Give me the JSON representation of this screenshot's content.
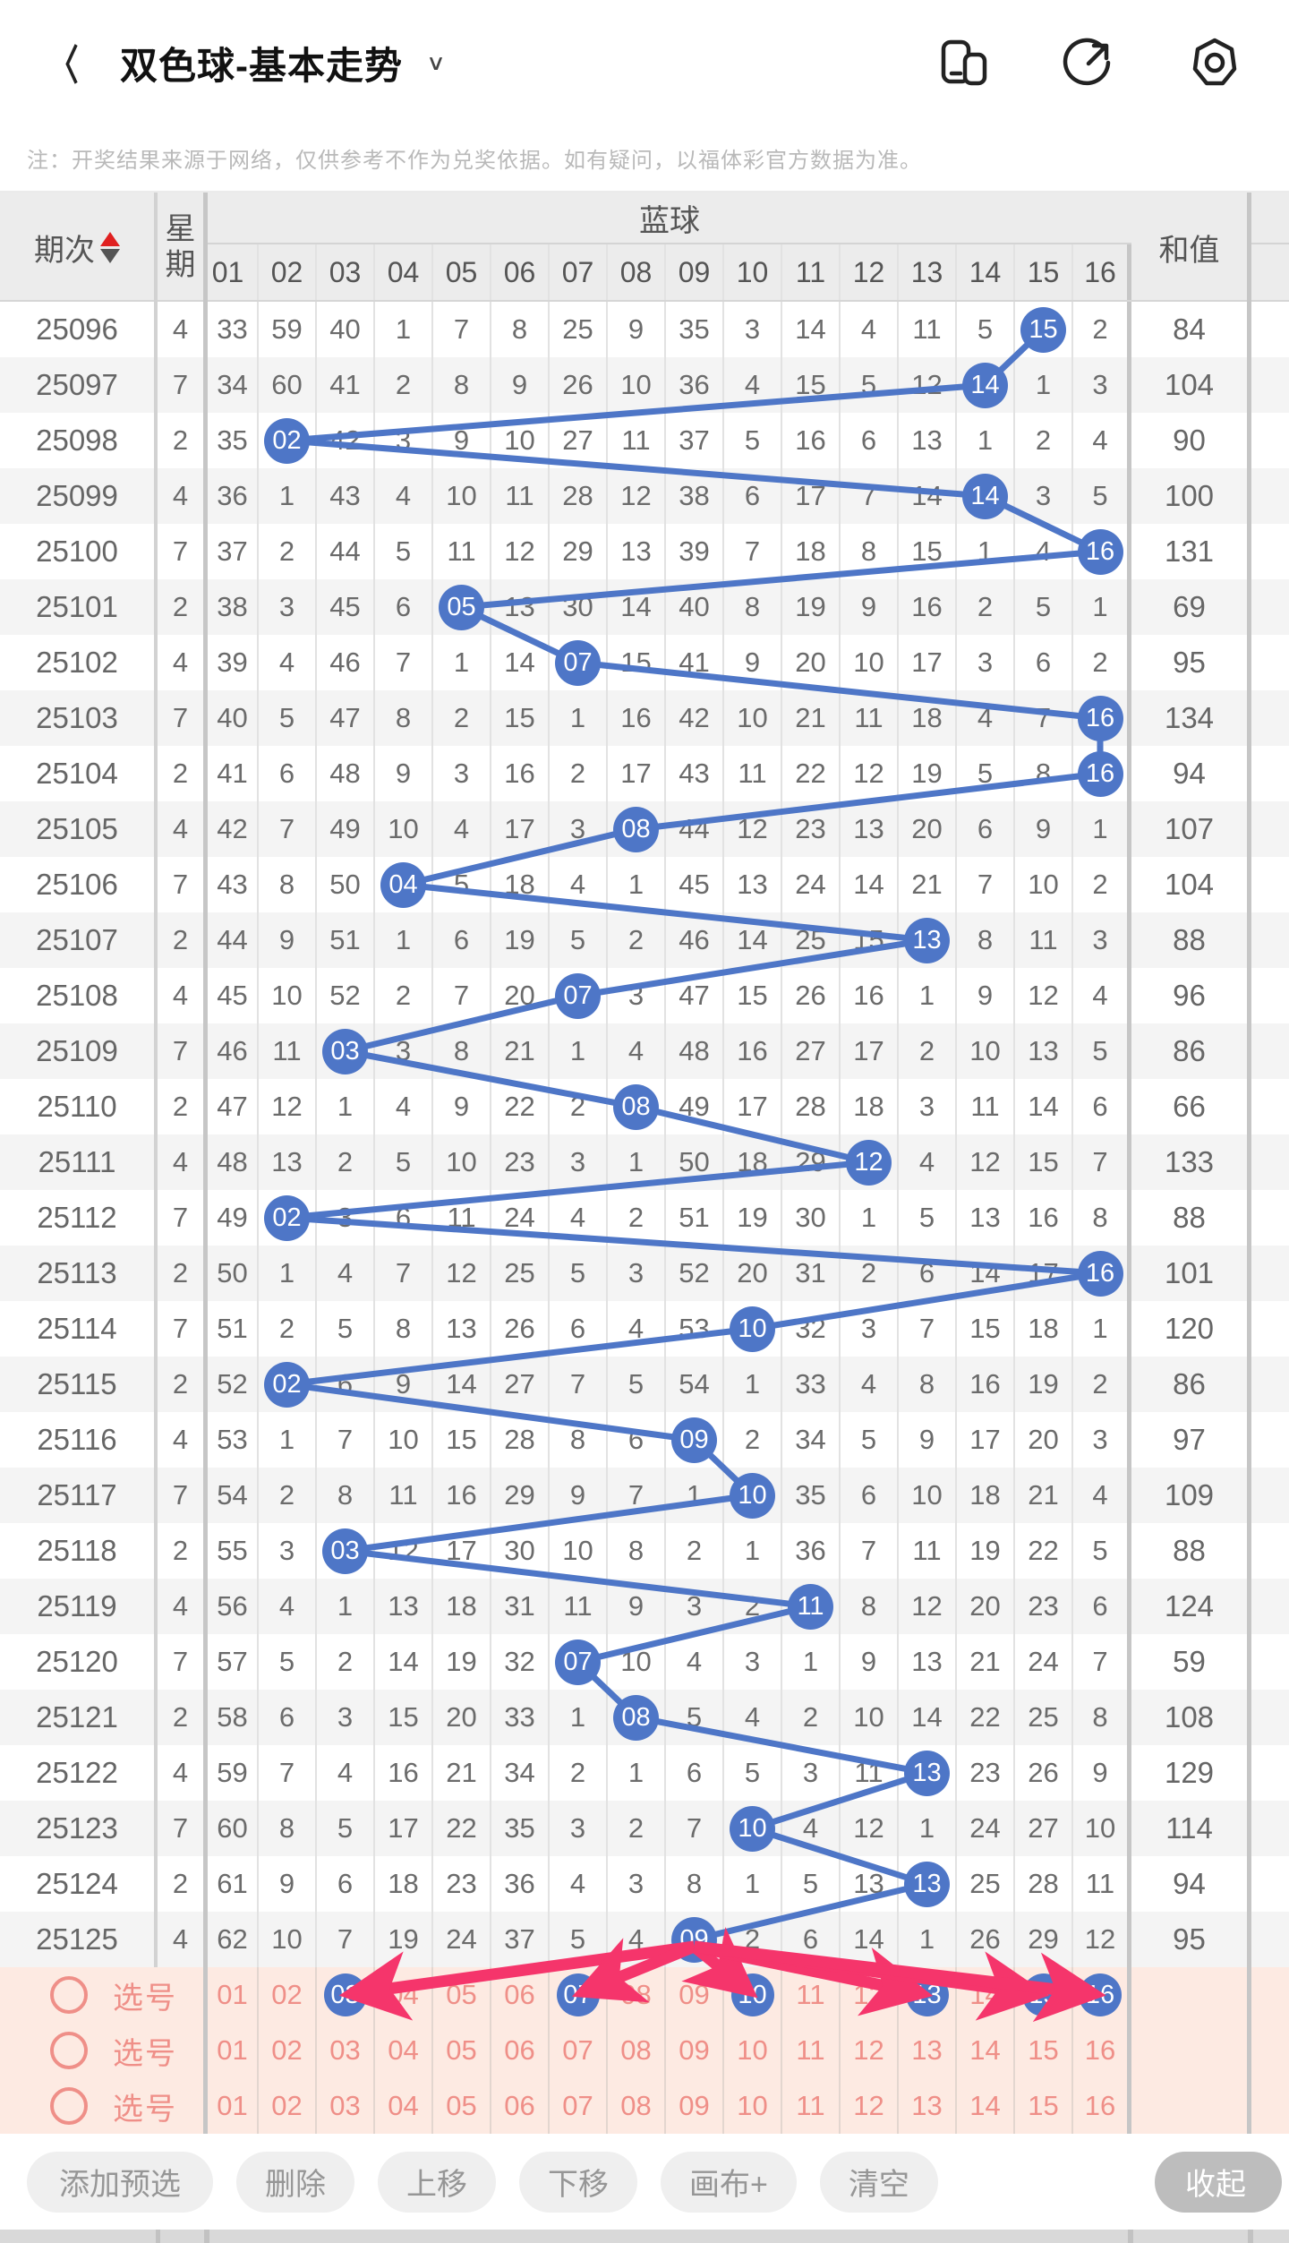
{
  "appbar": {
    "back_glyph": "〈",
    "title": "双色球-基本走势",
    "dropdown_glyph": "∨",
    "icons": [
      "split-screen-icon",
      "share-icon",
      "settings-icon"
    ]
  },
  "notice": "注：开奖结果来源于网络，仅供参考不作为兑奖依据。如有疑问，以福体彩官方数据为准。",
  "table": {
    "period_header": "期次",
    "weekday_header_chars": [
      "星",
      "期"
    ],
    "group_header": "蓝球",
    "sum_header": "和值",
    "ball_numbers": [
      "01",
      "02",
      "03",
      "04",
      "05",
      "06",
      "07",
      "08",
      "09",
      "10",
      "11",
      "12",
      "13",
      "14",
      "15",
      "16"
    ],
    "rows": [
      {
        "period": "25096",
        "weekday": "4",
        "cells": [
          33,
          59,
          40,
          1,
          7,
          8,
          25,
          9,
          35,
          3,
          14,
          4,
          11,
          5,
          15,
          2
        ],
        "ball": 15,
        "sum": "84"
      },
      {
        "period": "25097",
        "weekday": "7",
        "cells": [
          34,
          60,
          41,
          2,
          8,
          9,
          26,
          10,
          36,
          4,
          15,
          5,
          12,
          14,
          1,
          3
        ],
        "ball": 14,
        "sum": "104"
      },
      {
        "period": "25098",
        "weekday": "2",
        "cells": [
          35,
          2,
          42,
          3,
          9,
          10,
          27,
          11,
          37,
          5,
          16,
          6,
          13,
          1,
          2,
          4
        ],
        "ball": 2,
        "sum": "90"
      },
      {
        "period": "25099",
        "weekday": "4",
        "cells": [
          36,
          1,
          43,
          4,
          10,
          11,
          28,
          12,
          38,
          6,
          17,
          7,
          14,
          14,
          3,
          5
        ],
        "ball": 14,
        "sum": "100"
      },
      {
        "period": "25100",
        "weekday": "7",
        "cells": [
          37,
          2,
          44,
          5,
          11,
          12,
          29,
          13,
          39,
          7,
          18,
          8,
          15,
          1,
          4,
          16
        ],
        "ball": 16,
        "sum": "131"
      },
      {
        "period": "25101",
        "weekday": "2",
        "cells": [
          38,
          3,
          45,
          6,
          5,
          13,
          30,
          14,
          40,
          8,
          19,
          9,
          16,
          2,
          5,
          1
        ],
        "ball": 5,
        "sum": "69"
      },
      {
        "period": "25102",
        "weekday": "4",
        "cells": [
          39,
          4,
          46,
          7,
          1,
          14,
          7,
          15,
          41,
          9,
          20,
          10,
          17,
          3,
          6,
          2
        ],
        "ball": 7,
        "sum": "95"
      },
      {
        "period": "25103",
        "weekday": "7",
        "cells": [
          40,
          5,
          47,
          8,
          2,
          15,
          1,
          16,
          42,
          10,
          21,
          11,
          18,
          4,
          7,
          16
        ],
        "ball": 16,
        "sum": "134"
      },
      {
        "period": "25104",
        "weekday": "2",
        "cells": [
          41,
          6,
          48,
          9,
          3,
          16,
          2,
          17,
          43,
          11,
          22,
          12,
          19,
          5,
          8,
          16
        ],
        "ball": 16,
        "sum": "94"
      },
      {
        "period": "25105",
        "weekday": "4",
        "cells": [
          42,
          7,
          49,
          10,
          4,
          17,
          3,
          8,
          44,
          12,
          23,
          13,
          20,
          6,
          9,
          1
        ],
        "ball": 8,
        "sum": "107"
      },
      {
        "period": "25106",
        "weekday": "7",
        "cells": [
          43,
          8,
          50,
          4,
          5,
          18,
          4,
          1,
          45,
          13,
          24,
          14,
          21,
          7,
          10,
          2
        ],
        "ball": 4,
        "sum": "104"
      },
      {
        "period": "25107",
        "weekday": "2",
        "cells": [
          44,
          9,
          51,
          1,
          6,
          19,
          5,
          2,
          46,
          14,
          25,
          15,
          13,
          8,
          11,
          3
        ],
        "ball": 13,
        "sum": "88"
      },
      {
        "period": "25108",
        "weekday": "4",
        "cells": [
          45,
          10,
          52,
          2,
          7,
          20,
          7,
          3,
          47,
          15,
          26,
          16,
          1,
          9,
          12,
          4
        ],
        "ball": 7,
        "sum": "96"
      },
      {
        "period": "25109",
        "weekday": "7",
        "cells": [
          46,
          11,
          3,
          3,
          8,
          21,
          1,
          4,
          48,
          16,
          27,
          17,
          2,
          10,
          13,
          5
        ],
        "ball": 3,
        "sum": "86"
      },
      {
        "period": "25110",
        "weekday": "2",
        "cells": [
          47,
          12,
          1,
          4,
          9,
          22,
          2,
          8,
          49,
          17,
          28,
          18,
          3,
          11,
          14,
          6
        ],
        "ball": 8,
        "sum": "66"
      },
      {
        "period": "25111",
        "weekday": "4",
        "cells": [
          48,
          13,
          2,
          5,
          10,
          23,
          3,
          1,
          50,
          18,
          29,
          12,
          4,
          12,
          15,
          7
        ],
        "ball": 12,
        "sum": "133"
      },
      {
        "period": "25112",
        "weekday": "7",
        "cells": [
          49,
          2,
          3,
          6,
          11,
          24,
          4,
          2,
          51,
          19,
          30,
          1,
          5,
          13,
          16,
          8
        ],
        "ball": 2,
        "sum": "88"
      },
      {
        "period": "25113",
        "weekday": "2",
        "cells": [
          50,
          1,
          4,
          7,
          12,
          25,
          5,
          3,
          52,
          20,
          31,
          2,
          6,
          14,
          17,
          16
        ],
        "ball": 16,
        "sum": "101"
      },
      {
        "period": "25114",
        "weekday": "7",
        "cells": [
          51,
          2,
          5,
          8,
          13,
          26,
          6,
          4,
          53,
          10,
          32,
          3,
          7,
          15,
          18,
          1
        ],
        "ball": 10,
        "sum": "120"
      },
      {
        "period": "25115",
        "weekday": "2",
        "cells": [
          52,
          2,
          6,
          9,
          14,
          27,
          7,
          5,
          54,
          1,
          33,
          4,
          8,
          16,
          19,
          2
        ],
        "ball": 2,
        "sum": "86"
      },
      {
        "period": "25116",
        "weekday": "4",
        "cells": [
          53,
          1,
          7,
          10,
          15,
          28,
          8,
          6,
          9,
          2,
          34,
          5,
          9,
          17,
          20,
          3
        ],
        "ball": 9,
        "sum": "97"
      },
      {
        "period": "25117",
        "weekday": "7",
        "cells": [
          54,
          2,
          8,
          11,
          16,
          29,
          9,
          7,
          1,
          10,
          35,
          6,
          10,
          18,
          21,
          4
        ],
        "ball": 10,
        "sum": "109"
      },
      {
        "period": "25118",
        "weekday": "2",
        "cells": [
          55,
          3,
          3,
          12,
          17,
          30,
          10,
          8,
          2,
          1,
          36,
          7,
          11,
          19,
          22,
          5
        ],
        "ball": 3,
        "sum": "88"
      },
      {
        "period": "25119",
        "weekday": "4",
        "cells": [
          56,
          4,
          1,
          13,
          18,
          31,
          11,
          9,
          3,
          2,
          11,
          8,
          12,
          20,
          23,
          6
        ],
        "ball": 11,
        "sum": "124"
      },
      {
        "period": "25120",
        "weekday": "7",
        "cells": [
          57,
          5,
          2,
          14,
          19,
          32,
          7,
          10,
          4,
          3,
          1,
          9,
          13,
          21,
          24,
          7
        ],
        "ball": 7,
        "sum": "59"
      },
      {
        "period": "25121",
        "weekday": "2",
        "cells": [
          58,
          6,
          3,
          15,
          20,
          33,
          1,
          8,
          5,
          4,
          2,
          10,
          14,
          22,
          25,
          8
        ],
        "ball": 8,
        "sum": "108"
      },
      {
        "period": "25122",
        "weekday": "4",
        "cells": [
          59,
          7,
          4,
          16,
          21,
          34,
          2,
          1,
          6,
          5,
          3,
          11,
          13,
          23,
          26,
          9
        ],
        "ball": 13,
        "sum": "129"
      },
      {
        "period": "25123",
        "weekday": "7",
        "cells": [
          60,
          8,
          5,
          17,
          22,
          35,
          3,
          2,
          7,
          10,
          4,
          12,
          1,
          24,
          27,
          10
        ],
        "ball": 10,
        "sum": "114"
      },
      {
        "period": "25124",
        "weekday": "2",
        "cells": [
          61,
          9,
          6,
          18,
          23,
          36,
          4,
          3,
          8,
          1,
          5,
          13,
          13,
          25,
          28,
          11
        ],
        "ball": 13,
        "sum": "94"
      },
      {
        "period": "25125",
        "weekday": "4",
        "cells": [
          62,
          10,
          7,
          19,
          24,
          37,
          5,
          4,
          9,
          2,
          6,
          14,
          1,
          26,
          29,
          12
        ],
        "ball": 9,
        "sum": "95"
      }
    ]
  },
  "selection": {
    "label": "选号",
    "numbers": [
      "01",
      "02",
      "03",
      "04",
      "05",
      "06",
      "07",
      "08",
      "09",
      "10",
      "11",
      "12",
      "13",
      "14",
      "15",
      "16"
    ],
    "rows": [
      {
        "selected": [
          3,
          7,
          10,
          13,
          15,
          16
        ]
      },
      {
        "selected": []
      },
      {
        "selected": []
      }
    ],
    "arrow_targets": [
      3,
      7,
      10,
      13,
      15,
      16
    ]
  },
  "toolbar": {
    "buttons": [
      "添加预选",
      "删除",
      "上移",
      "下移",
      "画布+",
      "清空"
    ],
    "collapse_label": "收起"
  },
  "colors": {
    "ball_blue": "#4e76c7",
    "trend_line": "#4e76c7",
    "arrow_pink": "#f5356b",
    "selection_bg": "#fdeae2",
    "selection_text": "#ef8f88",
    "sort_up_red": "#e02020"
  }
}
